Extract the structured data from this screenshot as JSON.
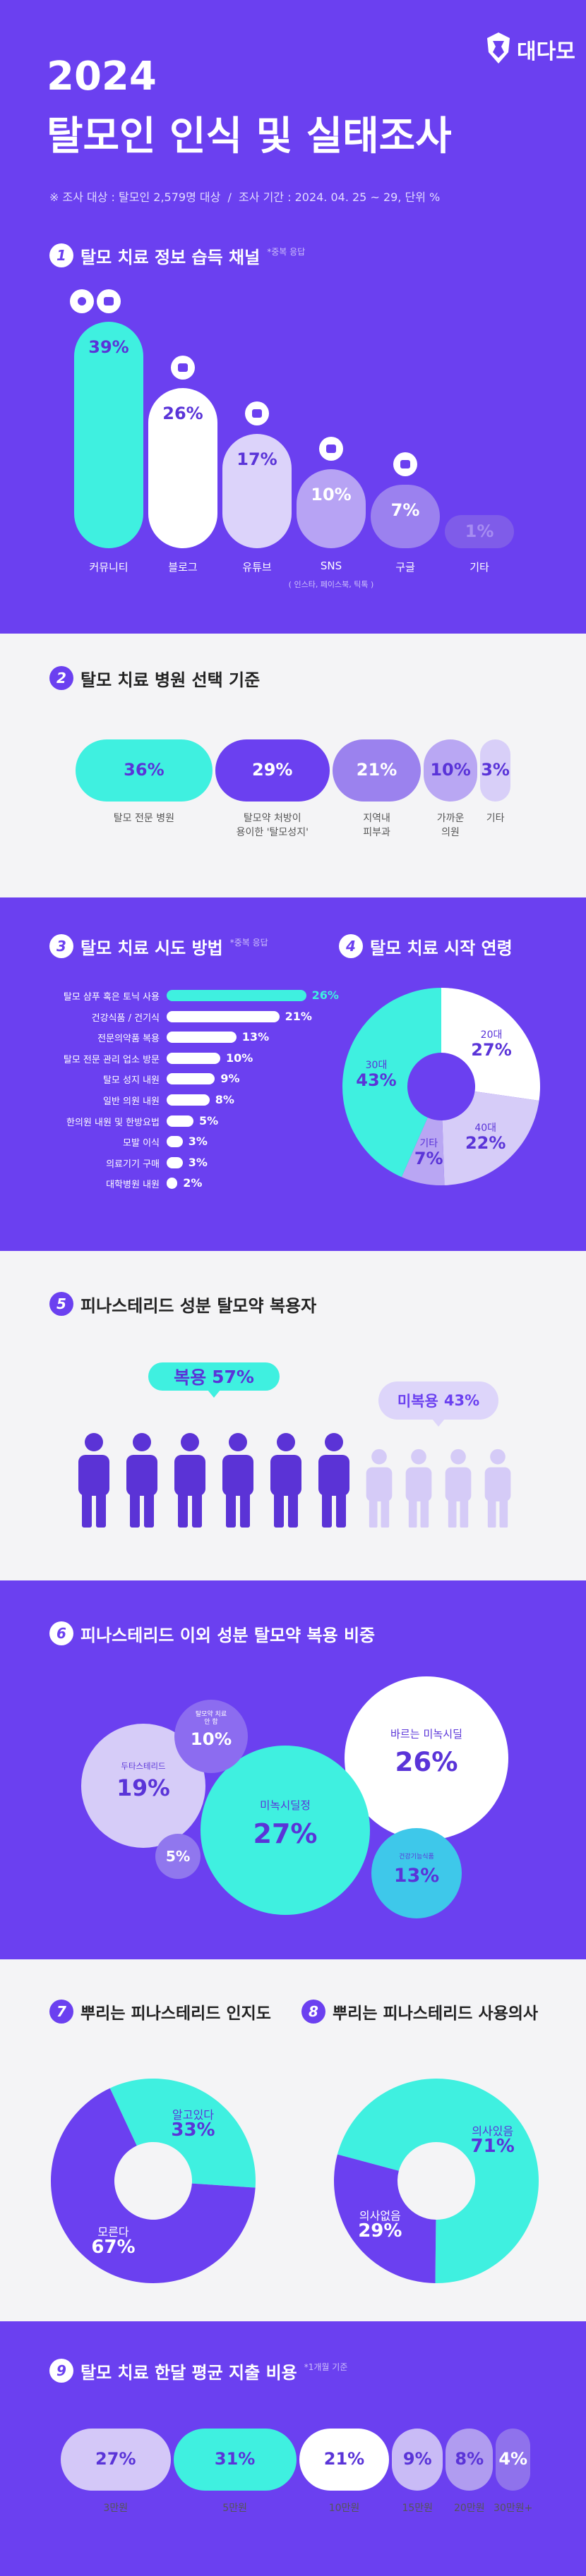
{
  "header": {
    "brand": "대다모",
    "year": "2024",
    "title": "탈모인 인식 및 실태조사",
    "note": "※ 조사 대상 : 탈모인 2,579명 대상  /  조사 기간 : 2024. 04. 25 ~ 29, 단위 %"
  },
  "chart_data": [
    {
      "type": "bar",
      "number": 1,
      "title": "탈모 치료 정보 습득 채널",
      "subtitle": "*중복 응답",
      "categories": [
        "커뮤니티",
        "블로그",
        "유튜브",
        "SNS",
        "구글",
        "기타"
      ],
      "values": [
        39,
        26,
        17,
        10,
        7,
        1
      ],
      "value_labels": [
        "39%",
        "26%",
        "17%",
        "10%",
        "7%",
        "1%"
      ],
      "colors": [
        "#3ff0e0",
        "#ffffff",
        "#dcd3fa",
        "#b7a3f4",
        "#9b81ef",
        "#7f5ce9"
      ],
      "annotation": "( 인스타, 페이스북, 틱톡 )"
    },
    {
      "type": "pill",
      "number": 2,
      "title": "탈모 치료 병원 선택 기준",
      "categories": [
        "탈모 전문 병원",
        "탈모약 처방이\n용이한 '탈모성지'",
        "지역내\n피부과",
        "가까운\n의원",
        "기타"
      ],
      "values": [
        36,
        29,
        21,
        10,
        3
      ],
      "value_labels": [
        "36%",
        "29%",
        "21%",
        "10%",
        "3%"
      ],
      "colors": [
        "#3ff0e0",
        "#6b40f0",
        "#9b82ee",
        "#b9a7f3",
        "#d8cff8"
      ]
    },
    {
      "type": "hbar",
      "number": 3,
      "title": "탈모 치료 시도 방법",
      "subtitle": "*중복 응답",
      "categories": [
        "탈모 샴푸 혹은 토닉 사용",
        "건강식품 / 건기식",
        "전문의약품 복용",
        "탈모 전문 관리 업소 방문",
        "탈모 성지 내원",
        "일반 의원 내원",
        "한의원 내원 및 한방요법",
        "모발 이식",
        "의료기기 구매",
        "대학병원 내원"
      ],
      "values": [
        26,
        21,
        13,
        10,
        9,
        8,
        5,
        3,
        3,
        2
      ],
      "value_labels": [
        "26%",
        "21%",
        "13%",
        "10%",
        "9%",
        "8%",
        "5%",
        "3%",
        "3%",
        "2%"
      ],
      "colors": [
        "#3ff0e0",
        "#ffffff",
        "#ffffff",
        "#ffffff",
        "#ffffff",
        "#ffffff",
        "#ffffff",
        "#ffffff",
        "#ffffff",
        "#ffffff"
      ]
    },
    {
      "type": "donut",
      "number": 4,
      "title": "탈모 치료 시작 연령",
      "categories": [
        "20대",
        "40대",
        "기타",
        "30대"
      ],
      "values": [
        27,
        22,
        7,
        43
      ],
      "value_labels": [
        "27%",
        "22%",
        "7%",
        "43%"
      ],
      "colors": [
        "#ffffff",
        "#d6ccf8",
        "#b9a6f3",
        "#3ff0e0"
      ]
    },
    {
      "type": "pictogram",
      "number": 5,
      "title": "피나스테리드 성분 탈모약 복용자",
      "categories": [
        "복용",
        "미복용"
      ],
      "values": [
        57,
        43
      ],
      "value_labels": [
        "57%",
        "43%"
      ],
      "colors": [
        "#5b33d6",
        "#d5cbf7"
      ],
      "bubble_colors": [
        "#3ff0e0",
        "#ddd5fa"
      ]
    },
    {
      "type": "bubble",
      "number": 6,
      "title": "피나스테리드 이외 성분 탈모약 복용 비중",
      "categories": [
        "바르는 미녹시딜",
        "미녹시딜정",
        "두타스테리드",
        "건강기능식품",
        "탈모약 치료\n안 함",
        null
      ],
      "values": [
        26,
        27,
        19,
        13,
        10,
        5
      ],
      "value_labels": [
        "26%",
        "27%",
        "19%",
        "13%",
        "10%",
        "5%"
      ],
      "colors": [
        "#ffffff",
        "#3ff0e0",
        "#d6ccf8",
        "#3ec8ea",
        "#8c6cf0",
        "#9077ee"
      ]
    },
    {
      "type": "donut",
      "number": 7,
      "title": "뿌리는 피나스테리드 인지도",
      "categories": [
        "알고있다",
        "모른다"
      ],
      "values": [
        33,
        67
      ],
      "value_labels": [
        "33%",
        "67%"
      ],
      "colors": [
        "#3ff0e0",
        "#6b40f0"
      ]
    },
    {
      "type": "donut",
      "number": 8,
      "title": "뿌리는 피나스테리드 사용의사",
      "categories": [
        "의사있음",
        "의사없음"
      ],
      "values": [
        71,
        29
      ],
      "value_labels": [
        "71%",
        "29%"
      ],
      "colors": [
        "#3ff0e0",
        "#6b40f0"
      ]
    },
    {
      "type": "pill",
      "number": 9,
      "title": "탈모 치료 한달 평균 지출 비용",
      "subtitle": "*1개월 기준",
      "categories": [
        "3만원",
        "5만원",
        "10만원",
        "15만원",
        "20만원",
        "30만원+"
      ],
      "values": [
        27,
        31,
        21,
        9,
        8,
        4
      ],
      "value_labels": [
        "27%",
        "31%",
        "21%",
        "9%",
        "8%",
        "4%"
      ],
      "colors": [
        "#d4c8f8",
        "#3ff0e0",
        "#ffffff",
        "#c9bbf6",
        "#b09cf0",
        "#8f72ec"
      ]
    }
  ]
}
